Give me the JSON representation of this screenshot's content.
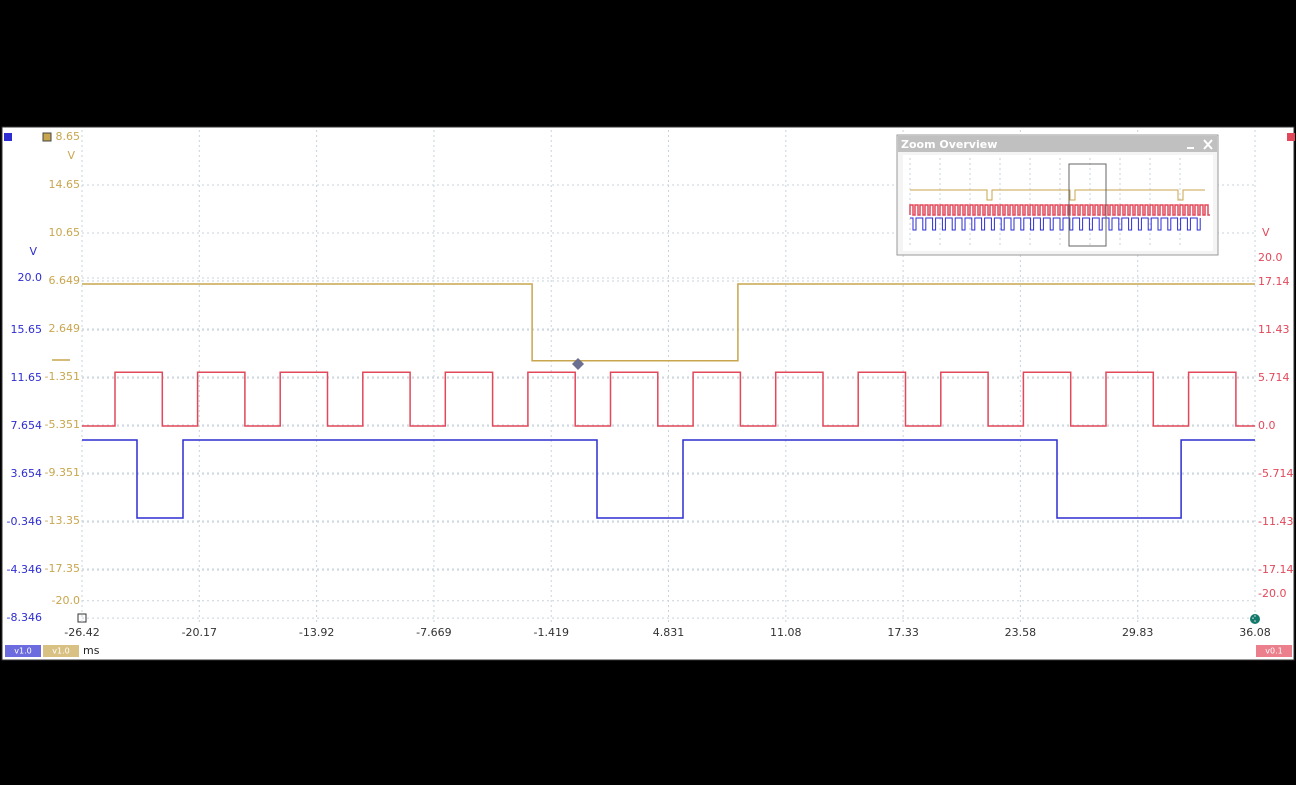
{
  "zoom_window": {
    "title": "Zoom Overview"
  },
  "chart_data": {
    "type": "line",
    "x_unit": "ms",
    "grid": true,
    "xlim": [
      -26.42,
      36.08
    ],
    "xticks": [
      -26.42,
      -20.17,
      -13.92,
      -7.669,
      -1.419,
      4.831,
      11.08,
      17.33,
      23.58,
      29.83,
      36.08
    ],
    "yellow_axis_top_label": "8.65",
    "series": [
      {
        "name": "v1.0",
        "color": "#2d2dd2",
        "unit": "V",
        "ylim": [
          -8.92,
          32.33
        ],
        "yticks": [
          {
            "value": 20,
            "label": "20.0"
          },
          15.65,
          11.65,
          7.654,
          3.654,
          -0.346,
          -4.346,
          -8.346
        ],
        "x": [
          -26.42,
          -23.49,
          -23.49,
          -21.04,
          -21.04,
          1.02,
          1.02,
          5.6,
          5.6,
          25.53,
          25.53,
          32.14,
          32.14,
          36.08
        ],
        "values": [
          6.5,
          6.5,
          0,
          0,
          6.5,
          6.5,
          0,
          0,
          6.5,
          6.5,
          0,
          0,
          6.5,
          6.5
        ]
      },
      {
        "name": "v1.0",
        "color": "#c8a64e",
        "unit": "V",
        "ylim": [
          -22.02,
          19.23
        ],
        "yticks": [
          14.65,
          10.65,
          6.649,
          2.649,
          -1.351,
          -5.351,
          -9.351,
          -13.35,
          -17.35,
          {
            "value": -20,
            "label": "-20.0"
          }
        ],
        "x": [
          -26.42,
          -2.44,
          -2.44,
          8.53,
          8.53,
          36.08
        ],
        "values": [
          6.4,
          6.4,
          0,
          0,
          6.4,
          6.4
        ]
      },
      {
        "name": "v0.1",
        "color": "#e2485a",
        "unit": "V",
        "ylim": [
          -23.69,
          35.24
        ],
        "yticks": [
          {
            "value": 20,
            "label": "20.0"
          },
          17.14,
          11.43,
          5.714,
          {
            "value": 0,
            "label": "0.0"
          },
          -5.714,
          -11.43,
          -17.14,
          {
            "value": -20,
            "label": "-20.0"
          }
        ],
        "x": [
          -26.42,
          -24.66,
          -24.66,
          -22.14,
          -22.14,
          -20.26,
          -20.26,
          -17.74,
          -17.74,
          -15.86,
          -15.86,
          -13.34,
          -13.34,
          -11.46,
          -11.46,
          -8.94,
          -8.94,
          -7.06,
          -7.06,
          -4.54,
          -4.54,
          -2.66,
          -2.66,
          -0.14,
          -0.14,
          1.74,
          1.74,
          4.26,
          4.26,
          6.14,
          6.14,
          8.66,
          8.66,
          10.54,
          10.54,
          13.06,
          13.06,
          14.94,
          14.94,
          17.46,
          17.46,
          19.34,
          19.34,
          21.86,
          21.86,
          23.74,
          23.74,
          26.26,
          26.26,
          28.14,
          28.14,
          30.66,
          30.66,
          32.54,
          32.54,
          35.06,
          35.06,
          36.08
        ],
        "values": [
          0,
          0,
          6.4,
          6.4,
          0,
          0,
          6.4,
          6.4,
          0,
          0,
          6.4,
          6.4,
          0,
          0,
          6.4,
          6.4,
          0,
          0,
          6.4,
          6.4,
          0,
          0,
          6.4,
          6.4,
          0,
          0,
          6.4,
          6.4,
          0,
          0,
          6.4,
          6.4,
          0,
          0,
          6.4,
          6.4,
          0,
          0,
          6.4,
          6.4,
          0,
          0,
          6.4,
          6.4,
          0,
          0,
          6.4,
          6.4,
          0,
          0,
          6.4,
          6.4,
          0,
          0,
          6.4,
          6.4,
          0,
          0
        ]
      }
    ]
  }
}
